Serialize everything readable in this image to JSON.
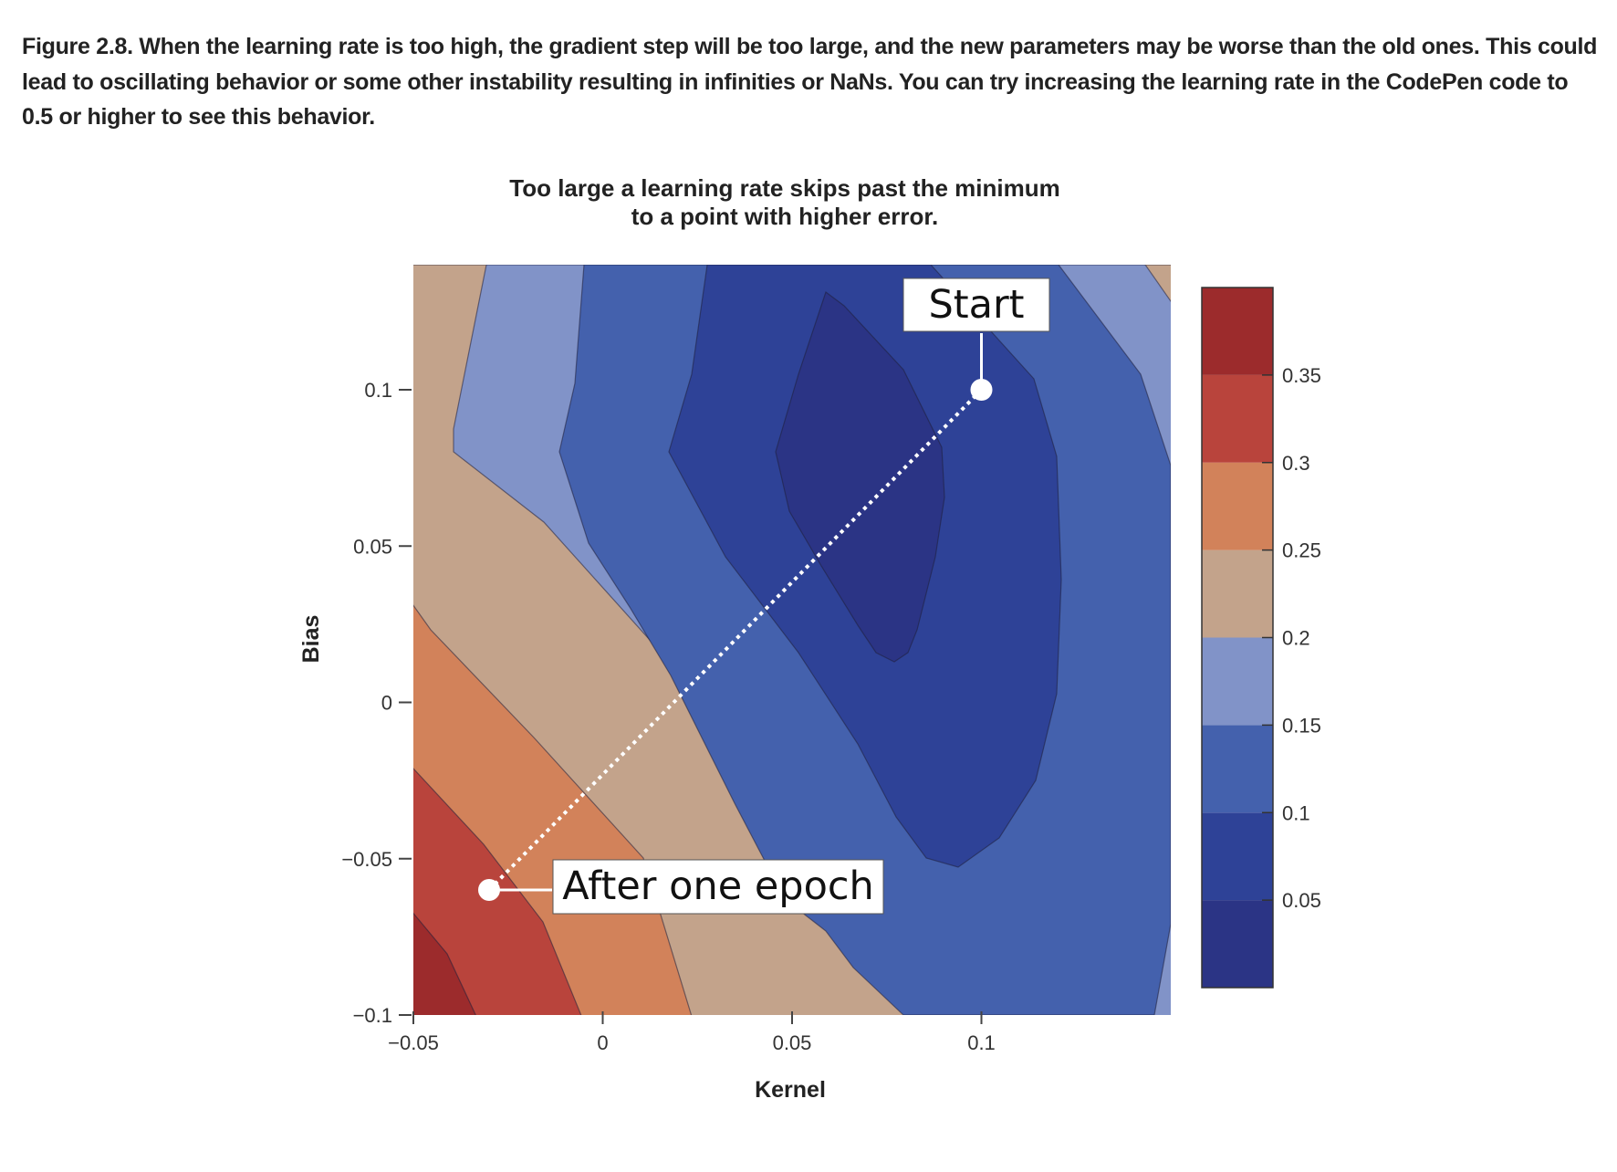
{
  "caption": "Figure 2.8. When the learning rate is too high, the gradient step will be too large, and the new parameters may be worse than the old ones. This could lead to oscillating behavior or some other instability resulting in infinities or NaNs. You can try increasing the learning rate in the CodePen code to 0.5 or higher to see this behavior.",
  "chart_data": {
    "type": "contour",
    "title_line1": "Too large a learning rate skips past the minimum",
    "title_line2": "to a point with higher error.",
    "xlabel": "Kernel",
    "ylabel": "Bias",
    "xlim": [
      -0.05,
      0.15
    ],
    "ylim": [
      -0.1,
      0.14
    ],
    "x_ticks": [
      -0.05,
      0,
      0.05,
      0.1
    ],
    "x_tick_labels": [
      "−0.05",
      "0",
      "0.05",
      "0.1"
    ],
    "y_ticks": [
      -0.1,
      -0.05,
      0,
      0.05,
      0.1
    ],
    "y_tick_labels": [
      "−0.1",
      "−0.05",
      "0",
      "0.05",
      "0.1"
    ],
    "levels": [
      0.0,
      0.05,
      0.1,
      0.15,
      0.2,
      0.25,
      0.3,
      0.35,
      0.4
    ],
    "level_colors": [
      "#2b3485",
      "#2e4297",
      "#4461ad",
      "#8193c8",
      "#c3a38b",
      "#d2825a",
      "#b9443c",
      "#9c2b2c"
    ],
    "colorbar_tick_values": [
      0.05,
      0.1,
      0.15,
      0.2,
      0.25,
      0.3,
      0.35
    ],
    "colorbar_tick_labels": [
      "0.05",
      "0.1",
      "0.15",
      "0.2",
      "0.25",
      "0.3",
      "0.35"
    ],
    "start_point": {
      "x": 0.1,
      "y": 0.1,
      "label": "Start"
    },
    "end_point": {
      "x": -0.03,
      "y": -0.06,
      "label": "After one epoch"
    }
  }
}
